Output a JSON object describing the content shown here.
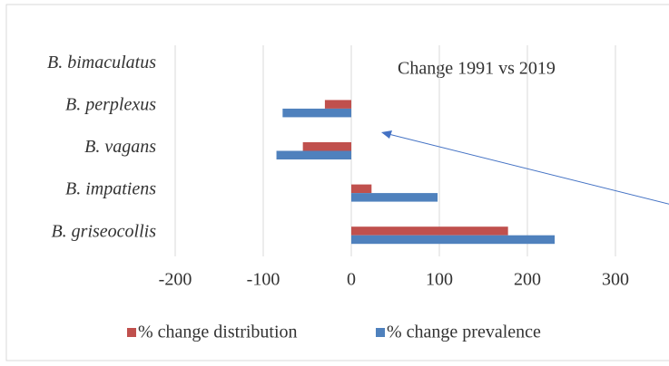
{
  "chart_data": {
    "type": "bar",
    "orientation": "horizontal",
    "title": "Change 1991 vs 2019",
    "categories": [
      "B. bimaculatus",
      "B. perplexus",
      "B. vagans",
      "B. impatiens",
      "B. griseocollis"
    ],
    "series": [
      {
        "name": "% change distribution",
        "color": "#c0504d",
        "values": [
          null,
          -30,
          -55,
          23,
          178
        ]
      },
      {
        "name": "% change prevalence",
        "color": "#4f81bd",
        "values": [
          null,
          -78,
          -85,
          98,
          231
        ]
      }
    ],
    "xlim": [
      -200,
      360
    ],
    "xticks": [
      -200,
      -100,
      0,
      100,
      200,
      300
    ],
    "grid": true,
    "legend": "bottom"
  }
}
